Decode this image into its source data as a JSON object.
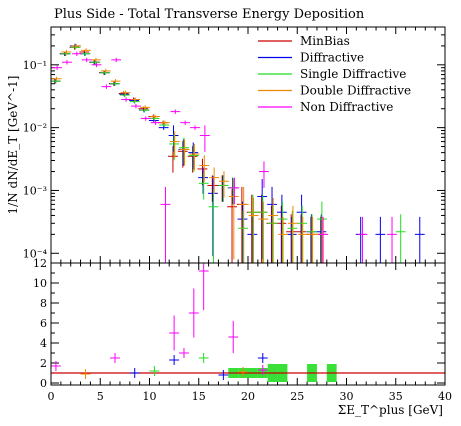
{
  "chart_data": [
    {
      "type": "scatter",
      "title": "Plus Side - Total Transverse Energy Deposition",
      "ylabel": "1/N dN/dE_T [GeV^-1]",
      "yscale": "log",
      "ylim": [
        7e-05,
        0.4
      ],
      "xlim": [
        0,
        40
      ],
      "y_ticks": [
        {
          "value": 0.0001,
          "label": "10^-4"
        },
        {
          "value": 0.001,
          "label": "10^-3"
        },
        {
          "value": 0.01,
          "label": "10^-2"
        },
        {
          "value": 0.1,
          "label": "10^-1"
        }
      ],
      "legend_position": "top-right",
      "series": [
        {
          "name": "MinBias",
          "color": "#cc0000",
          "x": [
            0.5,
            1.5,
            2.5,
            3.5,
            4.5,
            5.5,
            6.5,
            7.5,
            8.5,
            9.5,
            10.5,
            11.5,
            12.5,
            13.5,
            14.5,
            15.5,
            16.5,
            17.5,
            18.5,
            19.5,
            20.5,
            21.5,
            22.5,
            23.5,
            24.5,
            25.5,
            26.5,
            27.5
          ],
          "y": [
            0.055,
            0.15,
            0.19,
            0.16,
            0.11,
            0.075,
            0.05,
            0.035,
            0.028,
            0.02,
            0.015,
            0.012,
            0.0035,
            0.0042,
            0.0035,
            0.0022,
            0.0012,
            0.0012,
            0.00055,
            0.0006,
            0.00045,
            0.00045,
            0.0003,
            0.0003,
            0.00022,
            0.00022,
            0.0002,
            0.0002
          ]
        },
        {
          "name": "Diffractive",
          "color": "#0000ee",
          "x": [
            0.5,
            1.5,
            2.5,
            3.5,
            4.5,
            5.5,
            6.5,
            7.5,
            8.5,
            9.5,
            10.5,
            11.5,
            12.5,
            13.5,
            14.5,
            15.5,
            16.5,
            17.5,
            18.5,
            19.5,
            20.5,
            21.5,
            22.5,
            23.5,
            24.5,
            25.5,
            26.5,
            27.5,
            31.5,
            33.5,
            37.5
          ],
          "y": [
            0.055,
            0.15,
            0.2,
            0.15,
            0.11,
            0.075,
            0.05,
            0.034,
            0.027,
            0.019,
            0.013,
            0.01,
            0.0075,
            0.0045,
            0.004,
            0.0016,
            0.0009,
            0.0012,
            0.0011,
            0.00035,
            0.0002,
            0.0008,
            0.0006,
            0.00045,
            0.0002,
            0.00045,
            0.00022,
            0.00022,
            0.0002,
            0.0002,
            0.0002
          ]
        },
        {
          "name": "Single Diffractive",
          "color": "#22dd22",
          "x": [
            0.5,
            1.5,
            2.5,
            3.5,
            4.5,
            5.5,
            6.5,
            7.5,
            8.5,
            9.5,
            10.5,
            11.5,
            12.5,
            13.5,
            14.5,
            15.5,
            16.5,
            17.5,
            18.5,
            19.5,
            20.5,
            21.5,
            22.5,
            23.5,
            24.5,
            25.5,
            26.5,
            27.5,
            35.5
          ],
          "y": [
            0.055,
            0.15,
            0.19,
            0.15,
            0.11,
            0.075,
            0.05,
            0.033,
            0.026,
            0.019,
            0.014,
            0.011,
            0.0055,
            0.0048,
            0.0036,
            0.0013,
            0.00055,
            0.0012,
            0.0011,
            0.00025,
            0.00045,
            0.00045,
            0.0003,
            0.00035,
            0.00025,
            0.0003,
            0.00022,
            0.00035,
            0.00022
          ]
        },
        {
          "name": "Double Diffractive",
          "color": "#ee8800",
          "x": [
            0.5,
            1.5,
            2.5,
            3.5,
            4.5,
            5.5,
            6.5,
            7.5,
            8.5,
            9.5,
            10.5,
            11.5,
            12.5,
            13.5,
            14.5,
            15.5,
            16.5,
            17.5,
            18.5,
            19.5,
            20.5,
            21.5,
            22.5,
            23.5,
            24.5,
            25.5,
            26.5,
            27.5
          ],
          "y": [
            0.06,
            0.16,
            0.2,
            0.17,
            0.12,
            0.08,
            0.055,
            0.036,
            0.028,
            0.021,
            0.015,
            0.012,
            0.006,
            0.0045,
            0.0038,
            0.0025,
            0.0016,
            0.0014,
            0.0008,
            0.0006,
            0.0004,
            0.00035,
            0.0004,
            0.0002,
            0.0003,
            0.0002,
            0.0002,
            0.0002
          ]
        },
        {
          "name": "Non Diffractive",
          "color": "#ff00ff",
          "x": [
            0.5,
            1.5,
            2.5,
            3.5,
            4.5,
            5.5,
            6.5,
            7.5,
            8.5,
            9.5,
            10.5,
            11.5,
            12.5,
            13.5,
            14.5,
            15.5,
            18.5,
            21.5,
            27.5,
            31.5,
            34.5
          ],
          "y": [
            0.09,
            0.11,
            0.15,
            0.12,
            0.1,
            0.045,
            0.12,
            0.028,
            0.022,
            0.014,
            0.012,
            0.0006,
            0.018,
            0.012,
            0.01,
            0.0075,
            0.0011,
            0.002,
            0.0002,
            0.0002,
            0.0002
          ]
        }
      ]
    },
    {
      "type": "scatter",
      "xlabel": "ΣE_T^plus [GeV]",
      "xlim": [
        0,
        40
      ],
      "ylim": [
        -0.2,
        12
      ],
      "x_ticks": [
        0,
        5,
        10,
        15,
        20,
        25,
        30,
        35,
        40
      ],
      "y_ticks": [
        0,
        2,
        4,
        6,
        8,
        10,
        12
      ],
      "ratio_points": [
        {
          "x": 0.5,
          "y": 1.7,
          "color": "#ff00ff"
        },
        {
          "x": 6.5,
          "y": 2.5,
          "color": "#ff00ff"
        },
        {
          "x": 12.5,
          "y": 5.0,
          "color": "#ff00ff"
        },
        {
          "x": 12.5,
          "y": 2.3,
          "color": "#0000ee"
        },
        {
          "x": 13.5,
          "y": 3.0,
          "color": "#ff00ff"
        },
        {
          "x": 14.5,
          "y": 7.0,
          "color": "#ff00ff"
        },
        {
          "x": 15.5,
          "y": 11.2,
          "color": "#ff00ff"
        },
        {
          "x": 15.5,
          "y": 2.5,
          "color": "#22dd22"
        },
        {
          "x": 18.5,
          "y": 4.6,
          "color": "#ff00ff"
        },
        {
          "x": 21.5,
          "y": 2.5,
          "color": "#0000ee"
        },
        {
          "x": 21.5,
          "y": 1.3,
          "color": "#ff00ff"
        },
        {
          "x": 10.5,
          "y": 1.2,
          "color": "#22dd22"
        },
        {
          "x": 8.5,
          "y": 1.0,
          "color": "#0000ee"
        },
        {
          "x": 3.5,
          "y": 0.9,
          "color": "#ee8800"
        },
        {
          "x": 17.5,
          "y": 0.8,
          "color": "#0000ee"
        },
        {
          "x": 19.5,
          "y": 1.1,
          "color": "#ee8800"
        }
      ]
    }
  ]
}
